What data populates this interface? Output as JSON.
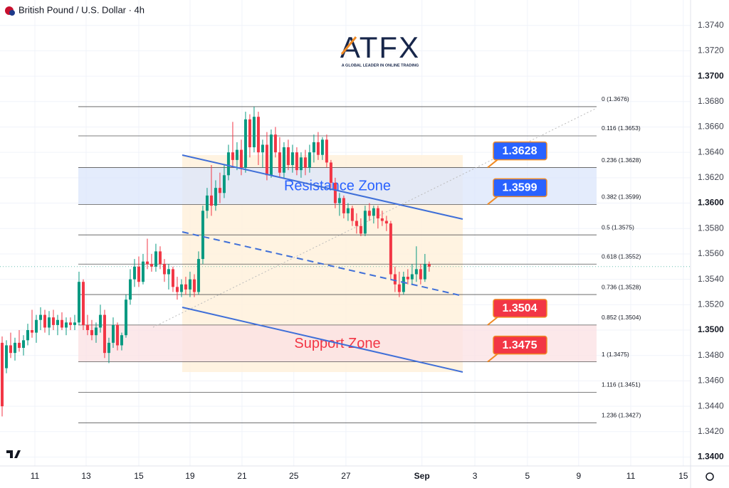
{
  "header": {
    "title": "British Pound / U.S. Dollar · 4h"
  },
  "logo": {
    "name": "ATFX",
    "tagline": "A GLOBAL LEADER IN ONLINE TRADING"
  },
  "chart_data": {
    "type": "candlestick",
    "up_color": "#089981",
    "down_color": "#f23645",
    "grid": true,
    "xlim": [
      -0.5,
      161.2
    ],
    "xticks": [
      {
        "value": 7.67,
        "label": "11"
      },
      {
        "value": 19.67,
        "label": "13"
      },
      {
        "value": 32,
        "label": "15"
      },
      {
        "value": 44,
        "label": "19"
      },
      {
        "value": 56.17,
        "label": "21"
      },
      {
        "value": 68.3,
        "label": "25"
      },
      {
        "value": 80.5,
        "label": "27"
      },
      {
        "value": 98.3,
        "label": "Sep"
      },
      {
        "value": 110.7,
        "label": "3"
      },
      {
        "value": 123,
        "label": "5"
      },
      {
        "value": 135,
        "label": "9"
      },
      {
        "value": 147.2,
        "label": "11"
      },
      {
        "value": 159.5,
        "label": "15"
      }
    ],
    "ylim": [
      1.3393,
      1.376
    ],
    "yticks": [
      {
        "value": 1.34,
        "label": "1.3400"
      },
      {
        "value": 1.342,
        "label": "1.3420"
      },
      {
        "value": 1.344,
        "label": "1.3440"
      },
      {
        "value": 1.346,
        "label": "1.3460"
      },
      {
        "value": 1.348,
        "label": "1.3480"
      },
      {
        "value": 1.35,
        "label": "1.3500"
      },
      {
        "value": 1.352,
        "label": "1.3520"
      },
      {
        "value": 1.354,
        "label": "1.3540"
      },
      {
        "value": 1.356,
        "label": "1.3560"
      },
      {
        "value": 1.358,
        "label": "1.3580"
      },
      {
        "value": 1.36,
        "label": "1.3600"
      },
      {
        "value": 1.362,
        "label": "1.3620"
      },
      {
        "value": 1.364,
        "label": "1.3640"
      },
      {
        "value": 1.366,
        "label": "1.3660"
      },
      {
        "value": 1.368,
        "label": "1.3680"
      },
      {
        "value": 1.37,
        "label": "1.3700"
      },
      {
        "value": 1.372,
        "label": "1.3720"
      },
      {
        "value": 1.374,
        "label": "1.3740"
      }
    ],
    "ohlc": [
      [
        1.349,
        1.3495,
        1.3432,
        1.344
      ],
      [
        1.347,
        1.3492,
        1.3466,
        1.3488
      ],
      [
        1.3488,
        1.3498,
        1.3478,
        1.3482
      ],
      [
        1.3482,
        1.3494,
        1.3476,
        1.349
      ],
      [
        1.349,
        1.35,
        1.3483,
        1.3486
      ],
      [
        1.3486,
        1.3496,
        1.348,
        1.3492
      ],
      [
        1.3492,
        1.3505,
        1.3488,
        1.35
      ],
      [
        1.35,
        1.3516,
        1.3494,
        1.3498
      ],
      [
        1.3498,
        1.3512,
        1.349,
        1.3508
      ],
      [
        1.3508,
        1.3518,
        1.35,
        1.3512
      ],
      [
        1.3512,
        1.3516,
        1.3498,
        1.3502
      ],
      [
        1.3502,
        1.3515,
        1.3496,
        1.351
      ],
      [
        1.351,
        1.3516,
        1.35,
        1.3504
      ],
      [
        1.3504,
        1.3512,
        1.3496,
        1.3508
      ],
      [
        1.3508,
        1.3514,
        1.35,
        1.3502
      ],
      [
        1.3502,
        1.351,
        1.3496,
        1.3506
      ],
      [
        1.3506,
        1.351,
        1.35,
        1.3504
      ],
      [
        1.3504,
        1.3512,
        1.35,
        1.3506
      ],
      [
        1.3506,
        1.3546,
        1.3504,
        1.3538
      ],
      [
        1.3538,
        1.354,
        1.35,
        1.3504
      ],
      [
        1.3504,
        1.3512,
        1.3496,
        1.35
      ],
      [
        1.35,
        1.3508,
        1.3492,
        1.3496
      ],
      [
        1.3496,
        1.3506,
        1.349,
        1.3502
      ],
      [
        1.3502,
        1.352,
        1.3498,
        1.3512
      ],
      [
        1.3512,
        1.3516,
        1.3478,
        1.3482
      ],
      [
        1.3482,
        1.3494,
        1.3474,
        1.349
      ],
      [
        1.349,
        1.351,
        1.3486,
        1.3504
      ],
      [
        1.3504,
        1.3506,
        1.3484,
        1.3488
      ],
      [
        1.3488,
        1.3498,
        1.3484,
        1.3496
      ],
      [
        1.3496,
        1.3528,
        1.3494,
        1.3524
      ],
      [
        1.3524,
        1.3548,
        1.352,
        1.354
      ],
      [
        1.354,
        1.3556,
        1.3534,
        1.355
      ],
      [
        1.355,
        1.3558,
        1.3534,
        1.3538
      ],
      [
        1.3538,
        1.356,
        1.3536,
        1.3554
      ],
      [
        1.3554,
        1.3572,
        1.3548,
        1.3552
      ],
      [
        1.3552,
        1.356,
        1.3546,
        1.355
      ],
      [
        1.355,
        1.3568,
        1.3546,
        1.3562
      ],
      [
        1.3562,
        1.3566,
        1.3548,
        1.3552
      ],
      [
        1.3552,
        1.3556,
        1.3538,
        1.3544
      ],
      [
        1.3544,
        1.3552,
        1.3532,
        1.3548
      ],
      [
        1.3548,
        1.355,
        1.353,
        1.3534
      ],
      [
        1.3534,
        1.3542,
        1.3524,
        1.353
      ],
      [
        1.353,
        1.354,
        1.3526,
        1.3536
      ],
      [
        1.3536,
        1.3542,
        1.3528,
        1.3532
      ],
      [
        1.3532,
        1.3546,
        1.3526,
        1.354
      ],
      [
        1.354,
        1.3544,
        1.3526,
        1.353
      ],
      [
        1.353,
        1.3562,
        1.3528,
        1.3556
      ],
      [
        1.3556,
        1.3598,
        1.3552,
        1.3594
      ],
      [
        1.3594,
        1.3612,
        1.3588,
        1.3606
      ],
      [
        1.3606,
        1.363,
        1.359,
        1.3598
      ],
      [
        1.3598,
        1.3618,
        1.3594,
        1.3612
      ],
      [
        1.3612,
        1.3624,
        1.36,
        1.3608
      ],
      [
        1.3608,
        1.363,
        1.3604,
        1.3622
      ],
      [
        1.3622,
        1.3646,
        1.3618,
        1.364
      ],
      [
        1.364,
        1.3664,
        1.3628,
        1.3634
      ],
      [
        1.3634,
        1.3648,
        1.3626,
        1.3642
      ],
      [
        1.3642,
        1.365,
        1.3622,
        1.3628
      ],
      [
        1.3628,
        1.3672,
        1.3624,
        1.3666
      ],
      [
        1.3666,
        1.367,
        1.3636,
        1.3644
      ],
      [
        1.3644,
        1.3676,
        1.364,
        1.3668
      ],
      [
        1.3668,
        1.3672,
        1.363,
        1.364
      ],
      [
        1.364,
        1.365,
        1.3628,
        1.3646
      ],
      [
        1.3646,
        1.3656,
        1.3618,
        1.3622
      ],
      [
        1.3622,
        1.3658,
        1.362,
        1.3654
      ],
      [
        1.3654,
        1.366,
        1.3636,
        1.364
      ],
      [
        1.364,
        1.3652,
        1.362,
        1.3624
      ],
      [
        1.3624,
        1.3648,
        1.362,
        1.3644
      ],
      [
        1.3644,
        1.365,
        1.3626,
        1.363
      ],
      [
        1.363,
        1.3646,
        1.3624,
        1.364
      ],
      [
        1.364,
        1.3644,
        1.3622,
        1.3626
      ],
      [
        1.3626,
        1.364,
        1.362,
        1.3636
      ],
      [
        1.3636,
        1.3642,
        1.3622,
        1.3628
      ],
      [
        1.3628,
        1.3646,
        1.3624,
        1.364
      ],
      [
        1.364,
        1.3654,
        1.3632,
        1.3648
      ],
      [
        1.3648,
        1.3656,
        1.3634,
        1.3638
      ],
      [
        1.3638,
        1.3652,
        1.3634,
        1.365
      ],
      [
        1.365,
        1.3654,
        1.3628,
        1.3632
      ],
      [
        1.3632,
        1.3634,
        1.3612,
        1.3616
      ],
      [
        1.3616,
        1.362,
        1.3596,
        1.36
      ],
      [
        1.36,
        1.3608,
        1.359,
        1.3604
      ],
      [
        1.3604,
        1.3606,
        1.3588,
        1.3592
      ],
      [
        1.3592,
        1.36,
        1.3586,
        1.3596
      ],
      [
        1.3596,
        1.3598,
        1.3582,
        1.3586
      ],
      [
        1.3586,
        1.3592,
        1.3576,
        1.3582
      ],
      [
        1.3582,
        1.3588,
        1.3574,
        1.3576
      ],
      [
        1.3576,
        1.3598,
        1.3574,
        1.3594
      ],
      [
        1.3594,
        1.36,
        1.3586,
        1.359
      ],
      [
        1.359,
        1.3598,
        1.3584,
        1.3596
      ],
      [
        1.3596,
        1.3598,
        1.358,
        1.3588
      ],
      [
        1.3588,
        1.3594,
        1.3582,
        1.3586
      ],
      [
        1.3586,
        1.359,
        1.3578,
        1.3584
      ],
      [
        1.3584,
        1.3586,
        1.354,
        1.3544
      ],
      [
        1.3544,
        1.355,
        1.353,
        1.3536
      ],
      [
        1.3536,
        1.3546,
        1.3526,
        1.353
      ],
      [
        1.353,
        1.3546,
        1.3528,
        1.3542
      ],
      [
        1.3542,
        1.3548,
        1.3536,
        1.354
      ],
      [
        1.354,
        1.3552,
        1.3536,
        1.3544
      ],
      [
        1.3544,
        1.3566,
        1.3538,
        1.3548
      ],
      [
        1.3548,
        1.3552,
        1.3536,
        1.354
      ],
      [
        1.354,
        1.356,
        1.3538,
        1.3552
      ],
      [
        1.3552,
        1.3554,
        1.3546,
        1.355
      ]
    ],
    "fib_levels": [
      {
        "label": "0 (1.3676)",
        "value": 1.3676
      },
      {
        "label": "0.116 (1.3653)",
        "value": 1.3653
      },
      {
        "label": "0.236 (1.3628)",
        "value": 1.3628
      },
      {
        "label": "0.382 (1.3599)",
        "value": 1.3599
      },
      {
        "label": "0.5 (1.3575)",
        "value": 1.3575
      },
      {
        "label": "0.618 (1.3552)",
        "value": 1.3552
      },
      {
        "label": "0.736 (1.3528)",
        "value": 1.3528
      },
      {
        "label": "0.852 (1.3504)",
        "value": 1.3504
      },
      {
        "label": "1 (1.3475)",
        "value": 1.3475
      },
      {
        "label": "1.116 (1.3451)",
        "value": 1.3451
      },
      {
        "label": "1.236 (1.3427)",
        "value": 1.3427
      }
    ],
    "zones": [
      {
        "name": "Resistance Zone",
        "low": 1.3599,
        "high": 1.3628,
        "color": "#2962ff",
        "fill": "#dbe6fb"
      },
      {
        "name": "Support Zone",
        "low": 1.3475,
        "high": 1.3504,
        "color": "#f23645",
        "fill": "#fbe0e3"
      }
    ],
    "price_tags": [
      {
        "value": 1.3628,
        "color": "#2962ff"
      },
      {
        "value": 1.3599,
        "color": "#2962ff"
      },
      {
        "value": 1.3504,
        "color": "#f23645"
      },
      {
        "value": 1.3475,
        "color": "#f23645"
      }
    ]
  }
}
